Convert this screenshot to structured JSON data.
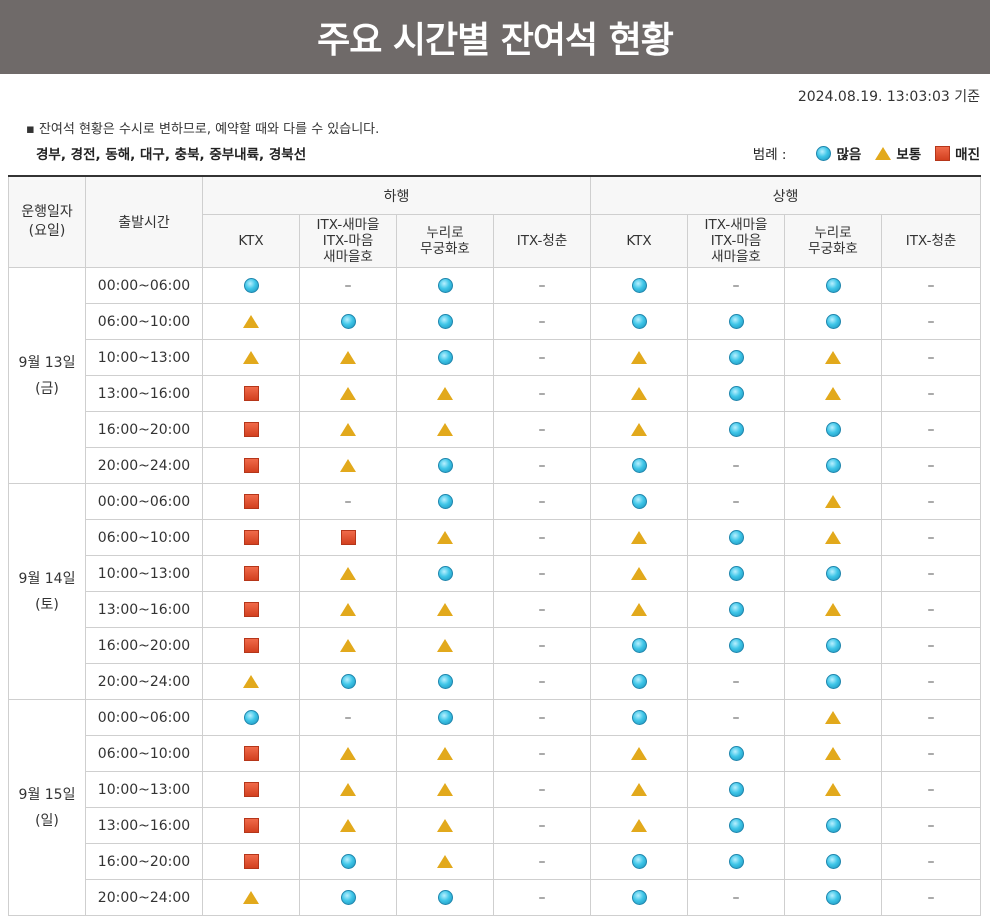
{
  "title": "주요 시간별 잔여석 현황",
  "timestamp": "2024.08.19. 13:03:03 기준",
  "notice": "▪ 잔여석 현황은 수시로 변하므로, 예약할 때와 다를 수 있습니다.",
  "lines": "경부, 경전, 동해, 대구, 충북, 중부내륙, 경북선",
  "legend": {
    "label": "범례 :",
    "items": [
      {
        "key": "many",
        "icon": "circle",
        "label": "많음"
      },
      {
        "key": "normal",
        "icon": "triangle",
        "label": "보통"
      },
      {
        "key": "full",
        "icon": "square",
        "label": "매진"
      }
    ]
  },
  "table": {
    "col_date": "운행일자\n(요일)",
    "col_time": "출발시간",
    "group_down": "하행",
    "group_up": "상행",
    "trains": [
      "KTX",
      "ITX-새마을\nITX-마음\n새마을호",
      "누리로\n무궁화호",
      "ITX-청춘"
    ],
    "days": [
      {
        "date": "9월 13일",
        "weekday": "(금)",
        "rows": [
          {
            "time": "00:00~06:00",
            "down": [
              "many",
              "none",
              "many",
              "none"
            ],
            "up": [
              "many",
              "none",
              "many",
              "none"
            ]
          },
          {
            "time": "06:00~10:00",
            "down": [
              "normal",
              "many",
              "many",
              "none"
            ],
            "up": [
              "many",
              "many",
              "many",
              "none"
            ]
          },
          {
            "time": "10:00~13:00",
            "down": [
              "normal",
              "normal",
              "many",
              "none"
            ],
            "up": [
              "normal",
              "many",
              "normal",
              "none"
            ]
          },
          {
            "time": "13:00~16:00",
            "down": [
              "full",
              "normal",
              "normal",
              "none"
            ],
            "up": [
              "normal",
              "many",
              "normal",
              "none"
            ]
          },
          {
            "time": "16:00~20:00",
            "down": [
              "full",
              "normal",
              "normal",
              "none"
            ],
            "up": [
              "normal",
              "many",
              "many",
              "none"
            ]
          },
          {
            "time": "20:00~24:00",
            "down": [
              "full",
              "normal",
              "many",
              "none"
            ],
            "up": [
              "many",
              "none",
              "many",
              "none"
            ]
          }
        ]
      },
      {
        "date": "9월 14일",
        "weekday": "(토)",
        "rows": [
          {
            "time": "00:00~06:00",
            "down": [
              "full",
              "none",
              "many",
              "none"
            ],
            "up": [
              "many",
              "none",
              "normal",
              "none"
            ]
          },
          {
            "time": "06:00~10:00",
            "down": [
              "full",
              "full",
              "normal",
              "none"
            ],
            "up": [
              "normal",
              "many",
              "normal",
              "none"
            ]
          },
          {
            "time": "10:00~13:00",
            "down": [
              "full",
              "normal",
              "many",
              "none"
            ],
            "up": [
              "normal",
              "many",
              "many",
              "none"
            ]
          },
          {
            "time": "13:00~16:00",
            "down": [
              "full",
              "normal",
              "normal",
              "none"
            ],
            "up": [
              "normal",
              "many",
              "normal",
              "none"
            ]
          },
          {
            "time": "16:00~20:00",
            "down": [
              "full",
              "normal",
              "normal",
              "none"
            ],
            "up": [
              "many",
              "many",
              "many",
              "none"
            ]
          },
          {
            "time": "20:00~24:00",
            "down": [
              "normal",
              "many",
              "many",
              "none"
            ],
            "up": [
              "many",
              "none",
              "many",
              "none"
            ]
          }
        ]
      },
      {
        "date": "9월 15일",
        "weekday": "(일)",
        "rows": [
          {
            "time": "00:00~06:00",
            "down": [
              "many",
              "none",
              "many",
              "none"
            ],
            "up": [
              "many",
              "none",
              "normal",
              "none"
            ]
          },
          {
            "time": "06:00~10:00",
            "down": [
              "full",
              "normal",
              "normal",
              "none"
            ],
            "up": [
              "normal",
              "many",
              "normal",
              "none"
            ]
          },
          {
            "time": "10:00~13:00",
            "down": [
              "full",
              "normal",
              "normal",
              "none"
            ],
            "up": [
              "normal",
              "many",
              "normal",
              "none"
            ]
          },
          {
            "time": "13:00~16:00",
            "down": [
              "full",
              "normal",
              "normal",
              "none"
            ],
            "up": [
              "normal",
              "many",
              "many",
              "none"
            ]
          },
          {
            "time": "16:00~20:00",
            "down": [
              "full",
              "many",
              "normal",
              "none"
            ],
            "up": [
              "many",
              "many",
              "many",
              "none"
            ]
          },
          {
            "time": "20:00~24:00",
            "down": [
              "normal",
              "many",
              "many",
              "none"
            ],
            "up": [
              "many",
              "none",
              "many",
              "none"
            ]
          }
        ]
      }
    ],
    "none_symbol": "–"
  }
}
